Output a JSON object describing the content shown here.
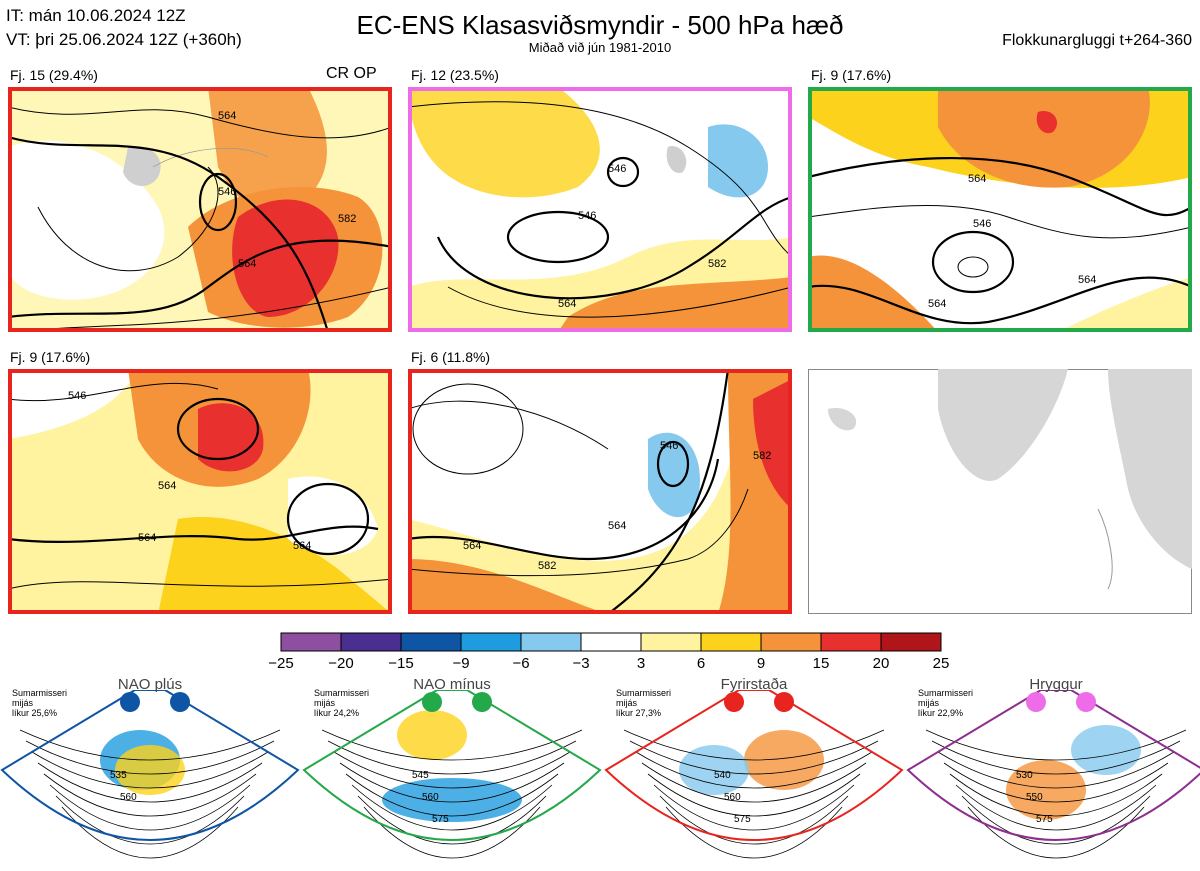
{
  "header": {
    "analysis_time": "IT: mán 10.06.2024 12Z",
    "valid_time": "VT: þri 25.06.2024 12Z  (+360h)",
    "title": "EC-ENS Klasasviðsmyndir - 500 hPa hæð",
    "subtitle": "Miðað við jún 1981-2010",
    "window": "Flokkunargluggi t+264-360"
  },
  "panels": [
    {
      "label": "Fj. 15 (29.4%)",
      "tag": "CR OP",
      "frame_color": "#e8241f",
      "members": 15,
      "percent": 29.4
    },
    {
      "label": "Fj. 12 (23.5%)",
      "tag": "",
      "frame_color": "#ef6ce8",
      "members": 12,
      "percent": 23.5
    },
    {
      "label": "Fj. 9 (17.6%)",
      "tag": "",
      "frame_color": "#23a84a",
      "members": 9,
      "percent": 17.6
    },
    {
      "label": "Fj. 9 (17.6%)",
      "tag": "",
      "frame_color": "#e8241f",
      "members": 9,
      "percent": 17.6
    },
    {
      "label": "Fj. 6 (11.8%)",
      "tag": "",
      "frame_color": "#e8241f",
      "members": 6,
      "percent": 11.8
    }
  ],
  "contour_labels": [
    "564",
    "546",
    "582",
    "546",
    "564",
    "564",
    "582",
    "546",
    "564",
    "564",
    "546",
    "564",
    "564",
    "582",
    "546",
    "564",
    "582"
  ],
  "colorbar": {
    "ticks": [
      "−25",
      "−20",
      "−15",
      "−9",
      "−6",
      "−3",
      "3",
      "6",
      "9",
      "15",
      "20",
      "25"
    ],
    "colors": [
      "#8e4fa0",
      "#4a2f91",
      "#0f55a6",
      "#1f9ce0",
      "#86c9ee",
      "#ffffff",
      "#fff3a0",
      "#fcd21c",
      "#f5933a",
      "#e8302e",
      "#b01619"
    ]
  },
  "regimes": [
    {
      "name": "NAO plús",
      "info": [
        "Sumarmisseri",
        "mijás",
        "líkur 25,6%"
      ],
      "frame_color": "#0f55a6",
      "dot_color": "#0f55a6",
      "probability": 25.6,
      "labels": [
        "535",
        "560"
      ]
    },
    {
      "name": "NAO mínus",
      "info": [
        "Sumarmisseri",
        "mijás",
        "líkur 24,2%"
      ],
      "frame_color": "#23a84a",
      "dot_color": "#23a84a",
      "probability": 24.2,
      "labels": [
        "545",
        "560",
        "575"
      ]
    },
    {
      "name": "Fyrirstaða",
      "info": [
        "Sumarmisseri",
        "mijás",
        "líkur 27,3%"
      ],
      "frame_color": "#e8241f",
      "dot_color": "#e8241f",
      "probability": 27.3,
      "labels": [
        "540",
        "560",
        "575"
      ]
    },
    {
      "name": "Hryggur",
      "info": [
        "Sumarmisseri",
        "mijás",
        "líkur 22,9%"
      ],
      "frame_color": "#8e2f8e",
      "dot_color": "#ef6ce8",
      "probability": 22.9,
      "labels": [
        "530",
        "550",
        "575"
      ]
    }
  ],
  "chart_data": {
    "type": "heatmap",
    "title": "EC-ENS Klasasviðsmyndir - 500 hPa hæð",
    "subtitle": "Miðað við jún 1981-2010",
    "clusters": [
      {
        "label": "Fj. 15 (29.4%)",
        "members": 15,
        "percent": 29.4,
        "regime": "Fyrirstaða",
        "operational": "CR OP"
      },
      {
        "label": "Fj. 12 (23.5%)",
        "members": 12,
        "percent": 23.5,
        "regime": "Hryggur"
      },
      {
        "label": "Fj. 9 (17.6%)",
        "members": 9,
        "percent": 17.6,
        "regime": "NAO mínus"
      },
      {
        "label": "Fj. 9 (17.6%)",
        "members": 9,
        "percent": 17.6,
        "regime": "Fyrirstaða"
      },
      {
        "label": "Fj. 6 (11.8%)",
        "members": 6,
        "percent": 11.8,
        "regime": "Fyrirstaða"
      }
    ],
    "colorbar_levels": [
      -25,
      -20,
      -15,
      -9,
      -6,
      -3,
      3,
      6,
      9,
      15,
      20,
      25
    ],
    "regimes": [
      {
        "name": "NAO plús",
        "probability": 25.6
      },
      {
        "name": "NAO mínus",
        "probability": 24.2
      },
      {
        "name": "Fyrirstaða",
        "probability": 27.3
      },
      {
        "name": "Hryggur",
        "probability": 22.9
      }
    ]
  }
}
